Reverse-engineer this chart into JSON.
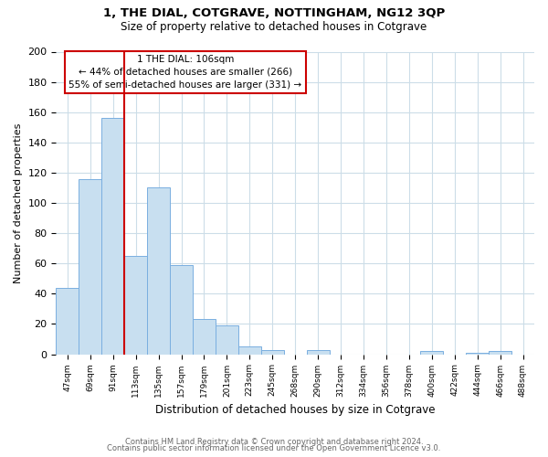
{
  "title": "1, THE DIAL, COTGRAVE, NOTTINGHAM, NG12 3QP",
  "subtitle": "Size of property relative to detached houses in Cotgrave",
  "xlabel": "Distribution of detached houses by size in Cotgrave",
  "ylabel": "Number of detached properties",
  "bar_color": "#c8dff0",
  "bar_edge_color": "#7aafe0",
  "background_color": "#ffffff",
  "grid_color": "#ccdde8",
  "bins": [
    "47sqm",
    "69sqm",
    "91sqm",
    "113sqm",
    "135sqm",
    "157sqm",
    "179sqm",
    "201sqm",
    "223sqm",
    "245sqm",
    "268sqm",
    "290sqm",
    "312sqm",
    "334sqm",
    "356sqm",
    "378sqm",
    "400sqm",
    "422sqm",
    "444sqm",
    "466sqm",
    "488sqm"
  ],
  "values": [
    44,
    116,
    156,
    65,
    110,
    59,
    23,
    19,
    5,
    3,
    0,
    3,
    0,
    0,
    0,
    0,
    2,
    0,
    1,
    2,
    0
  ],
  "vline_color": "#cc0000",
  "ylim": [
    0,
    200
  ],
  "yticks": [
    0,
    20,
    40,
    60,
    80,
    100,
    120,
    140,
    160,
    180,
    200
  ],
  "annotation_title": "1 THE DIAL: 106sqm",
  "annotation_line1": "← 44% of detached houses are smaller (266)",
  "annotation_line2": "55% of semi-detached houses are larger (331) →",
  "footer1": "Contains HM Land Registry data © Crown copyright and database right 2024.",
  "footer2": "Contains public sector information licensed under the Open Government Licence v3.0."
}
